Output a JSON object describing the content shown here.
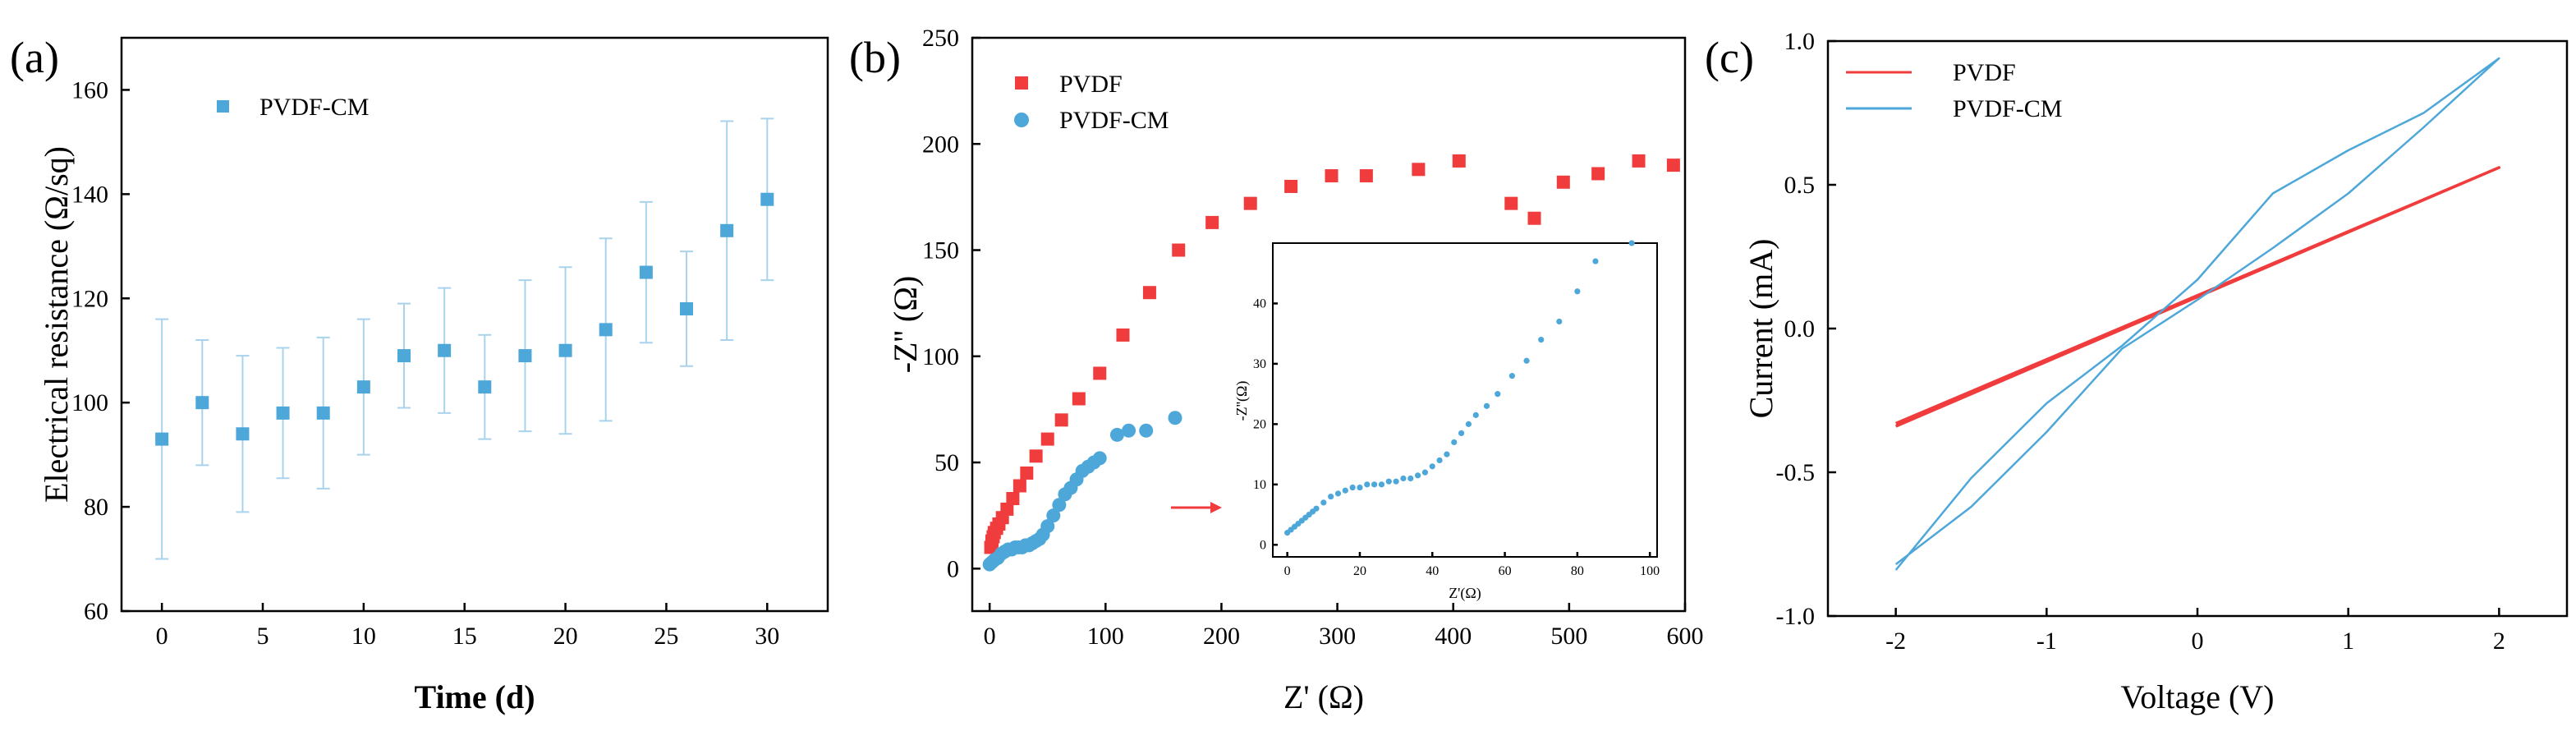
{
  "figure": {
    "panels": [
      "(a)",
      "(b)",
      "(c)"
    ]
  },
  "chart_data": [
    {
      "type": "scatter",
      "panel_label": "(a)",
      "title": "",
      "xlabel": "Time (d)",
      "ylabel": "Electrical resistance (Ω/sq)",
      "xlim": [
        -2,
        33
      ],
      "ylim": [
        60,
        170
      ],
      "xticks": [
        0,
        5,
        10,
        15,
        20,
        25,
        30
      ],
      "yticks": [
        60,
        80,
        100,
        120,
        140,
        160
      ],
      "legend_position": "top-left",
      "series": [
        {
          "name": "PVDF-CM",
          "color": "#4ea7d9",
          "marker": "square",
          "x": [
            0,
            2,
            4,
            6,
            8,
            10,
            12,
            14,
            16,
            18,
            20,
            22,
            24,
            26,
            28,
            30
          ],
          "y": [
            93,
            100,
            94,
            98,
            98,
            103,
            109,
            110,
            103,
            109,
            110,
            114,
            125,
            118,
            133,
            139
          ],
          "error": [
            23,
            12,
            15,
            12.5,
            14.5,
            13,
            10,
            12,
            10,
            14.5,
            16,
            17.5,
            13.5,
            11,
            21,
            15.5
          ]
        }
      ]
    },
    {
      "type": "scatter",
      "panel_label": "(b)",
      "title": "",
      "xlabel": "Z' (Ω)",
      "ylabel": "-Z'' (Ω)",
      "xlim": [
        -15,
        600
      ],
      "ylim": [
        -20,
        250
      ],
      "xticks": [
        0,
        100,
        200,
        300,
        400,
        500,
        600
      ],
      "yticks": [
        0,
        50,
        100,
        150,
        200,
        250
      ],
      "legend_position": "top-left",
      "series": [
        {
          "name": "PVDF",
          "color": "#f03c3c",
          "marker": "square",
          "x": [
            1,
            2,
            3,
            4,
            6,
            8,
            11,
            15,
            20,
            26,
            32,
            40,
            50,
            62,
            77,
            95,
            115,
            138,
            163,
            192,
            225,
            260,
            295,
            325,
            370,
            405,
            450,
            470,
            495,
            525,
            560,
            590
          ],
          "y": [
            10,
            13,
            15,
            17,
            19,
            21,
            24,
            28,
            33,
            39,
            45,
            53,
            61,
            70,
            80,
            92,
            110,
            130,
            150,
            163,
            172,
            180,
            185,
            185,
            188,
            192,
            172,
            165,
            182,
            186,
            192,
            190
          ]
        },
        {
          "name": "PVDF-CM",
          "color": "#4ea7d9",
          "marker": "circle",
          "x": [
            0,
            2,
            4,
            7,
            10,
            13,
            16,
            19,
            22,
            25,
            28,
            31,
            34,
            37,
            40,
            43,
            46,
            50,
            55,
            60,
            65,
            70,
            75,
            80,
            85,
            90,
            95,
            110,
            120,
            135,
            160
          ],
          "y": [
            2,
            3,
            4,
            5,
            7,
            8,
            9,
            9,
            10,
            10,
            10,
            11,
            11,
            12,
            13,
            14,
            16,
            20,
            25,
            30,
            35,
            38,
            42,
            46,
            48,
            50,
            52,
            63,
            65,
            65,
            71
          ]
        }
      ],
      "annotation": "red arrow pointing to inset",
      "inset": {
        "type": "scatter",
        "xlabel": "Z'(Ω)",
        "ylabel": "-Z''(Ω)",
        "xlim": [
          -4,
          102
        ],
        "ylim": [
          -2,
          50
        ],
        "xticks": [
          0,
          20,
          40,
          60,
          80,
          100
        ],
        "yticks": [
          0,
          10,
          20,
          30,
          40
        ],
        "series": [
          {
            "name": "PVDF-CM",
            "color": "#4ea7d9",
            "marker": "circle",
            "x": [
              0,
              1,
              2,
              3,
              4,
              5,
              6,
              7,
              8,
              10,
              12,
              14,
              16,
              18,
              20,
              22,
              24,
              26,
              28,
              30,
              32,
              34,
              36,
              38,
              40,
              42,
              44,
              46,
              48,
              50,
              52,
              55,
              58,
              62,
              66,
              70,
              75,
              80,
              85,
              95
            ],
            "y": [
              2,
              2.5,
              3,
              3.5,
              4,
              4.5,
              5,
              5.5,
              6,
              7,
              8,
              8.5,
              9,
              9.5,
              9.5,
              10,
              10,
              10,
              10.5,
              10.5,
              11,
              11,
              11.5,
              12,
              13,
              14,
              15,
              17,
              18.5,
              20,
              21.5,
              23,
              25,
              28,
              30.5,
              34,
              37,
              42,
              47,
              50
            ]
          }
        ]
      }
    },
    {
      "type": "line",
      "panel_label": "(c)",
      "title": "",
      "xlabel": "Voltage (V)",
      "ylabel": "Current (mA)",
      "xlim": [
        -2.45,
        2.45
      ],
      "ylim": [
        -1.0,
        1.0
      ],
      "xticks": [
        -2,
        -1,
        0,
        1,
        2
      ],
      "yticks": [
        -1.0,
        -0.5,
        0.0,
        0.5,
        1.0
      ],
      "legend_position": "top-left",
      "series": [
        {
          "name": "PVDF",
          "color": "#f03c3c",
          "x": [
            -2,
            2,
            -2
          ],
          "y": [
            -0.34,
            0.56,
            -0.33
          ]
        },
        {
          "name": "PVDF-CM",
          "color": "#4ea7d9",
          "x": [
            -2,
            -1.5,
            -1,
            -0.5,
            0,
            0.5,
            1,
            1.5,
            2,
            1.5,
            1,
            0.5,
            0,
            -0.5,
            -1,
            -1.5,
            -2
          ],
          "y": [
            -0.84,
            -0.52,
            -0.26,
            -0.06,
            0.17,
            0.47,
            0.62,
            0.75,
            0.94,
            0.7,
            0.47,
            0.28,
            0.1,
            -0.07,
            -0.36,
            -0.62,
            -0.82
          ]
        }
      ]
    }
  ]
}
